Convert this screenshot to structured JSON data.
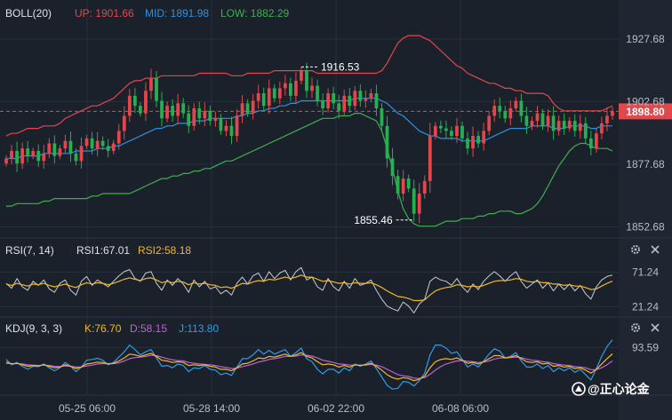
{
  "colors": {
    "background": "#1a212b",
    "axis_background": "#1f2631",
    "divider": "#2c3543",
    "grid": "#27303c",
    "axis_text": "#b7bec8",
    "legend_text": "#dfe3e8",
    "up_candle": "#e2474b",
    "down_candle": "#27b04f",
    "boll_up": "#e2474b",
    "boll_mid": "#2f8fe0",
    "boll_low": "#3fae4d",
    "rsi1": "#c9ccd1",
    "rsi2": "#f1b72c",
    "kdj_k": "#f1b72c",
    "kdj_d": "#c061d8",
    "kdj_j": "#2f9be8",
    "price_tag": "#e2474b",
    "price_line": "#e2474b"
  },
  "panels": {
    "boll": {
      "title": "BOLL(20)",
      "up_label": "UP: 1901.66",
      "mid_label": "MID: 1891.98",
      "low_label": "LOW: 1882.29"
    },
    "rsi": {
      "title": "RSI(7, 14)",
      "rsi1_label": "RSI1:67.01",
      "rsi2_label": "RSI2:58.18"
    },
    "kdj": {
      "title": "KDJ(9, 3, 3)",
      "k_label": "K:76.70",
      "d_label": "D:58.15",
      "j_label": "J:113.80"
    }
  },
  "icons": {
    "settings": "gear-icon",
    "close": "close-icon"
  },
  "watermark": {
    "text": "@正心论金"
  },
  "chart_data": {
    "type": "candlestick",
    "x_labels": [
      "05-25 06:00",
      "05-28 14:00",
      "06-02 22:00",
      "06-08 06:00"
    ],
    "price_axis": {
      "ticks": [
        "1927.68",
        "1902.68",
        "1877.68",
        "1852.68"
      ],
      "tick_values": [
        1927.68,
        1902.68,
        1877.68,
        1852.68
      ],
      "range": [
        1849,
        1934
      ]
    },
    "current_price": 1898.8,
    "current_price_label": "1898.80",
    "high_marker": {
      "value": 1916.53,
      "label": "1916.53"
    },
    "low_marker": {
      "value": 1855.46,
      "label": "1855.46"
    },
    "close": [
      1880,
      1883,
      1878,
      1884,
      1881,
      1883,
      1879,
      1882,
      1886,
      1881,
      1884,
      1887,
      1882,
      1879,
      1885,
      1888,
      1884,
      1887,
      1885,
      1883,
      1886,
      1891,
      1897,
      1905,
      1901,
      1898,
      1907,
      1912,
      1903,
      1896,
      1901,
      1897,
      1902,
      1898,
      1893,
      1900,
      1896,
      1899,
      1895,
      1896,
      1891,
      1893,
      1889,
      1897,
      1902,
      1898,
      1903,
      1906,
      1901,
      1908,
      1904,
      1908,
      1910,
      1905,
      1911,
      1915,
      1907,
      1909,
      1903,
      1900,
      1906,
      1902,
      1899,
      1905,
      1901,
      1907,
      1903,
      1904,
      1906,
      1900,
      1893,
      1880,
      1873,
      1866,
      1872,
      1868,
      1858,
      1866,
      1871,
      1889,
      1893,
      1892,
      1891,
      1889,
      1893,
      1888,
      1884,
      1889,
      1886,
      1891,
      1897,
      1901,
      1899,
      1896,
      1900,
      1903,
      1897,
      1893,
      1895,
      1898,
      1893,
      1897,
      1891,
      1895,
      1892,
      1895,
      1891,
      1894,
      1888,
      1884,
      1890,
      1894,
      1897,
      1898.8
    ],
    "bollinger": {
      "up": [
        1889,
        1890,
        1890,
        1891,
        1892,
        1892,
        1892,
        1893,
        1893,
        1893,
        1894,
        1896,
        1897,
        1898,
        1899,
        1900,
        1901,
        1901,
        1902,
        1903,
        1904,
        1906,
        1908,
        1910,
        1911,
        1911,
        1912,
        1912,
        1912,
        1913,
        1913,
        1913,
        1913,
        1913,
        1913,
        1913,
        1914,
        1914,
        1914,
        1914,
        1914,
        1914,
        1913,
        1913,
        1913,
        1914,
        1914,
        1914,
        1914,
        1914,
        1915,
        1915,
        1915,
        1915,
        1915,
        1915,
        1915,
        1915,
        1914,
        1914,
        1914,
        1914,
        1914,
        1914,
        1914,
        1914,
        1914,
        1914,
        1914,
        1914,
        1915,
        1918,
        1922,
        1926,
        1928,
        1929,
        1929,
        1929,
        1928,
        1927,
        1925,
        1923,
        1921,
        1919,
        1917,
        1916,
        1914,
        1913,
        1912,
        1911,
        1910,
        1910,
        1909,
        1908,
        1908,
        1907,
        1907,
        1906,
        1906,
        1906,
        1906,
        1905,
        1902,
        1900,
        1899,
        1899,
        1899,
        1899,
        1899,
        1899,
        1899,
        1899,
        1900,
        1901
      ],
      "mid": [
        1880,
        1880,
        1880,
        1881,
        1881,
        1881,
        1881,
        1882,
        1882,
        1882,
        1882,
        1882,
        1882,
        1883,
        1883,
        1883,
        1883,
        1884,
        1884,
        1884,
        1885,
        1885,
        1886,
        1887,
        1888,
        1889,
        1890,
        1891,
        1892,
        1892,
        1893,
        1893,
        1894,
        1894,
        1894,
        1895,
        1895,
        1895,
        1896,
        1896,
        1896,
        1896,
        1896,
        1897,
        1897,
        1898,
        1898,
        1899,
        1899,
        1900,
        1900,
        1901,
        1901,
        1902,
        1902,
        1903,
        1903,
        1903,
        1903,
        1903,
        1903,
        1903,
        1903,
        1903,
        1903,
        1904,
        1904,
        1904,
        1904,
        1904,
        1903,
        1902,
        1900,
        1898,
        1897,
        1895,
        1893,
        1891,
        1890,
        1889,
        1889,
        1888,
        1888,
        1888,
        1888,
        1887,
        1887,
        1887,
        1887,
        1887,
        1888,
        1889,
        1890,
        1891,
        1892,
        1892,
        1892,
        1892,
        1893,
        1893,
        1893,
        1893,
        1892,
        1892,
        1892,
        1893,
        1893,
        1893,
        1893,
        1892,
        1892,
        1893,
        1893,
        1893
      ],
      "low": [
        1861,
        1861,
        1862,
        1862,
        1862,
        1862,
        1862,
        1863,
        1863,
        1864,
        1864,
        1864,
        1864,
        1864,
        1864,
        1864,
        1865,
        1865,
        1866,
        1866,
        1866,
        1866,
        1866,
        1866,
        1867,
        1868,
        1869,
        1870,
        1871,
        1872,
        1872,
        1873,
        1873,
        1874,
        1874,
        1875,
        1875,
        1876,
        1876,
        1877,
        1878,
        1879,
        1879,
        1880,
        1881,
        1882,
        1883,
        1884,
        1885,
        1886,
        1887,
        1888,
        1889,
        1890,
        1891,
        1892,
        1893,
        1894,
        1895,
        1896,
        1896,
        1896,
        1897,
        1897,
        1897,
        1898,
        1898,
        1897,
        1896,
        1895,
        1891,
        1884,
        1876,
        1867,
        1860,
        1856,
        1854,
        1853,
        1853,
        1853,
        1853,
        1854,
        1855,
        1855,
        1855,
        1856,
        1856,
        1856,
        1857,
        1857,
        1858,
        1858,
        1859,
        1859,
        1859,
        1858,
        1858,
        1859,
        1860,
        1862,
        1865,
        1869,
        1873,
        1877,
        1880,
        1883,
        1885,
        1886,
        1886,
        1885,
        1884,
        1884,
        1884,
        1883
      ]
    },
    "rsi": {
      "y_ticks": [
        "71.24",
        "21.24"
      ],
      "tick_values": [
        71.24,
        21.24
      ],
      "range": [
        10,
        90
      ],
      "rsi1": [
        55,
        48,
        62,
        50,
        45,
        58,
        52,
        60,
        47,
        42,
        55,
        60,
        45,
        38,
        58,
        65,
        52,
        60,
        55,
        50,
        58,
        66,
        72,
        75,
        62,
        58,
        70,
        72,
        55,
        45,
        60,
        52,
        62,
        54,
        42,
        60,
        50,
        58,
        47,
        50,
        40,
        45,
        38,
        55,
        64,
        54,
        66,
        70,
        58,
        72,
        62,
        70,
        74,
        60,
        72,
        78,
        60,
        64,
        50,
        45,
        62,
        50,
        44,
        58,
        48,
        62,
        52,
        55,
        60,
        45,
        32,
        22,
        18,
        15,
        28,
        22,
        12,
        25,
        32,
        58,
        64,
        60,
        58,
        52,
        62,
        50,
        42,
        54,
        46,
        58,
        66,
        72,
        66,
        58,
        66,
        72,
        58,
        48,
        54,
        60,
        48,
        56,
        44,
        54,
        46,
        54,
        44,
        52,
        40,
        32,
        50,
        60,
        65,
        67
      ],
      "rsi2": [
        54,
        52,
        55,
        53,
        51,
        54,
        53,
        55,
        52,
        50,
        52,
        54,
        51,
        49,
        53,
        56,
        54,
        56,
        55,
        53,
        55,
        58,
        61,
        63,
        61,
        59,
        62,
        63,
        60,
        56,
        58,
        56,
        58,
        57,
        53,
        56,
        54,
        55,
        53,
        52,
        49,
        50,
        48,
        51,
        55,
        54,
        57,
        59,
        58,
        61,
        60,
        62,
        64,
        62,
        64,
        67,
        64,
        64,
        61,
        58,
        59,
        57,
        55,
        56,
        54,
        56,
        55,
        55,
        56,
        53,
        49,
        44,
        40,
        36,
        35,
        33,
        30,
        30,
        31,
        38,
        44,
        47,
        49,
        50,
        53,
        52,
        50,
        51,
        50,
        52,
        55,
        58,
        59,
        59,
        60,
        62,
        61,
        58,
        57,
        58,
        56,
        56,
        54,
        54,
        52,
        53,
        51,
        51,
        49,
        46,
        47,
        51,
        55,
        58.18
      ]
    },
    "kdj": {
      "y_ticks": [
        "93.59"
      ],
      "tick_values": [
        93.59
      ],
      "range": [
        -25,
        120
      ],
      "k": [
        55,
        50,
        52,
        48,
        44,
        46,
        45,
        48,
        44,
        40,
        42,
        48,
        44,
        38,
        42,
        50,
        52,
        55,
        54,
        50,
        52,
        58,
        66,
        76,
        74,
        70,
        74,
        78,
        70,
        60,
        58,
        54,
        56,
        54,
        46,
        48,
        46,
        48,
        44,
        42,
        36,
        36,
        32,
        40,
        50,
        52,
        58,
        66,
        64,
        70,
        68,
        72,
        76,
        70,
        74,
        80,
        70,
        66,
        56,
        48,
        50,
        48,
        42,
        46,
        42,
        48,
        46,
        48,
        52,
        44,
        34,
        22,
        14,
        10,
        14,
        12,
        6,
        10,
        18,
        40,
        56,
        62,
        64,
        62,
        66,
        60,
        52,
        54,
        50,
        56,
        64,
        72,
        72,
        66,
        68,
        72,
        64,
        56,
        54,
        56,
        50,
        52,
        44,
        46,
        42,
        44,
        38,
        40,
        34,
        26,
        36,
        50,
        64,
        76.7
      ],
      "d": [
        52,
        51,
        51,
        50,
        48,
        47,
        46,
        47,
        46,
        44,
        43,
        45,
        44,
        42,
        42,
        45,
        47,
        50,
        51,
        51,
        51,
        53,
        58,
        64,
        67,
        68,
        70,
        73,
        72,
        68,
        64,
        61,
        59,
        58,
        54,
        52,
        50,
        49,
        48,
        46,
        43,
        41,
        38,
        39,
        43,
        46,
        50,
        55,
        58,
        62,
        64,
        67,
        70,
        70,
        71,
        74,
        73,
        71,
        66,
        60,
        57,
        54,
        50,
        49,
        47,
        47,
        47,
        47,
        49,
        47,
        43,
        36,
        29,
        22,
        19,
        17,
        13,
        12,
        14,
        23,
        34,
        43,
        50,
        54,
        58,
        59,
        57,
        56,
        54,
        55,
        58,
        63,
        66,
        66,
        67,
        68,
        67,
        63,
        60,
        59,
        56,
        55,
        51,
        49,
        47,
        46,
        43,
        42,
        40,
        35,
        35,
        40,
        48,
        58.15
      ],
      "j": [
        62,
        48,
        54,
        44,
        36,
        44,
        43,
        50,
        40,
        32,
        40,
        54,
        44,
        30,
        42,
        60,
        62,
        65,
        60,
        48,
        54,
        68,
        82,
        100,
        88,
        74,
        82,
        88,
        66,
        44,
        46,
        40,
        50,
        46,
        30,
        40,
        38,
        46,
        36,
        34,
        22,
        26,
        20,
        42,
        64,
        64,
        74,
        88,
        76,
        86,
        76,
        82,
        88,
        70,
        80,
        92,
        64,
        56,
        36,
        24,
        36,
        36,
        26,
        40,
        32,
        50,
        44,
        50,
        58,
        38,
        16,
        -6,
        -16,
        -14,
        4,
        2,
        -8,
        6,
        26,
        74,
        100,
        100,
        92,
        78,
        82,
        62,
        42,
        50,
        42,
        58,
        76,
        90,
        84,
        66,
        70,
        80,
        58,
        42,
        42,
        50,
        38,
        46,
        30,
        40,
        32,
        40,
        28,
        36,
        22,
        8,
        38,
        70,
        96,
        113.8
      ]
    }
  }
}
